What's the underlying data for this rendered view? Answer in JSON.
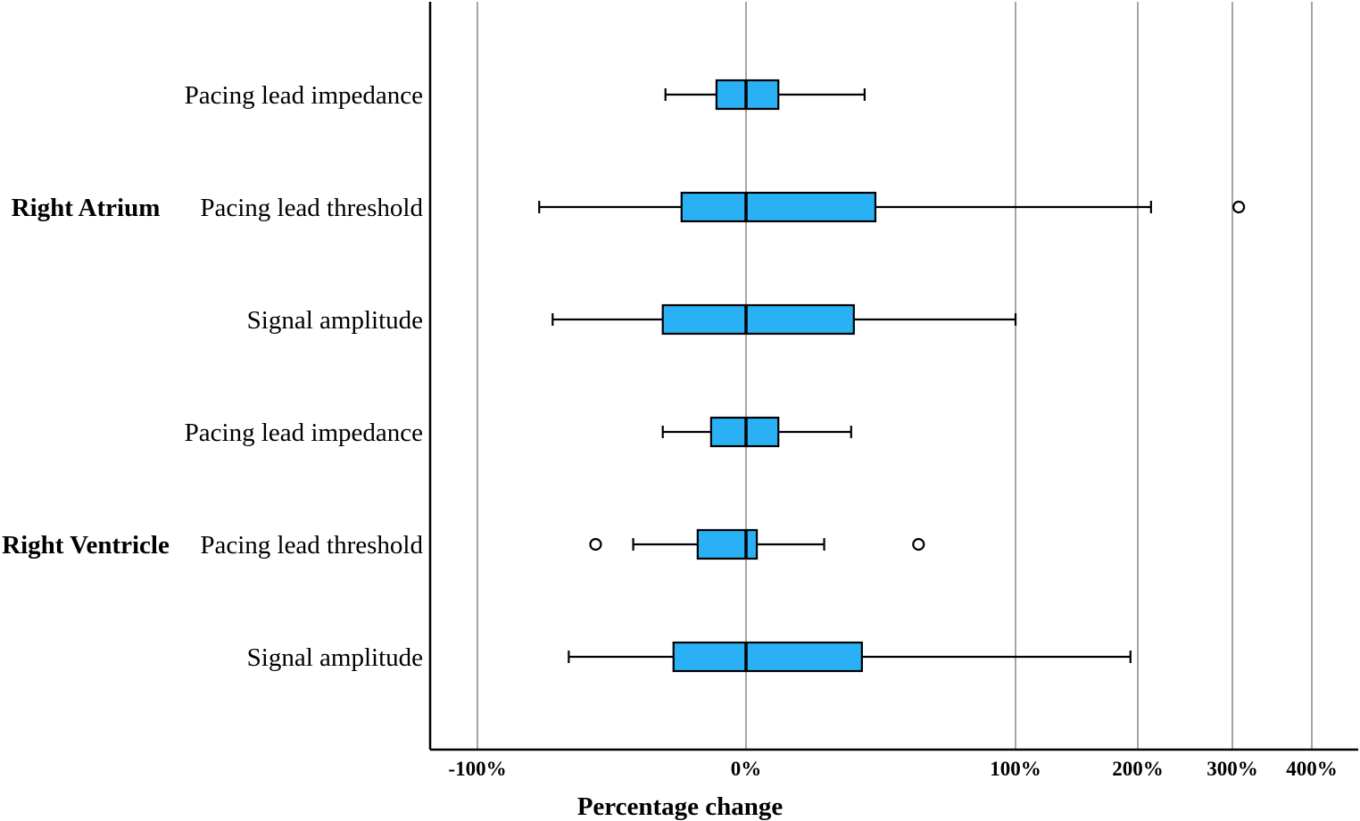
{
  "chart_data": {
    "type": "boxplot",
    "orientation": "horizontal",
    "xlabel": "Percentage change",
    "x_scale": "symlog",
    "x_ticks": [
      -100,
      0,
      100,
      200,
      300,
      400
    ],
    "x_tick_labels": [
      "-100%",
      "0%",
      "100%",
      "200%",
      "300%",
      "400%"
    ],
    "xlim": [
      -118,
      417
    ],
    "grid": "vertical",
    "box_color": "#29b0f5",
    "groups": [
      {
        "name": "Right Atrium",
        "rows": [
          {
            "label": "Pacing lead impedance",
            "whisker_low": -30,
            "q1": -11,
            "median": 0,
            "q3": 12,
            "whisker_high": 44,
            "outliers": []
          },
          {
            "label": "Pacing lead threshold",
            "whisker_low": -77,
            "q1": -24,
            "median": 0,
            "q3": 48,
            "whisker_high": 214,
            "outliers": [
              308
            ]
          },
          {
            "label": "Signal amplitude",
            "whisker_low": -72,
            "q1": -31,
            "median": 0,
            "q3": 40,
            "whisker_high": 100,
            "outliers": []
          }
        ]
      },
      {
        "name": "Right Ventricle",
        "rows": [
          {
            "label": "Pacing lead impedance",
            "whisker_low": -31,
            "q1": -13,
            "median": 0,
            "q3": 12,
            "whisker_high": 39,
            "outliers": []
          },
          {
            "label": "Pacing lead threshold",
            "whisker_low": -42,
            "q1": -18,
            "median": 0,
            "q3": 4,
            "whisker_high": 29,
            "outliers": [
              -56,
              64
            ]
          },
          {
            "label": "Signal amplitude",
            "whisker_low": -66,
            "q1": -27,
            "median": 0,
            "q3": 43,
            "whisker_high": 194,
            "outliers": []
          }
        ]
      }
    ]
  }
}
